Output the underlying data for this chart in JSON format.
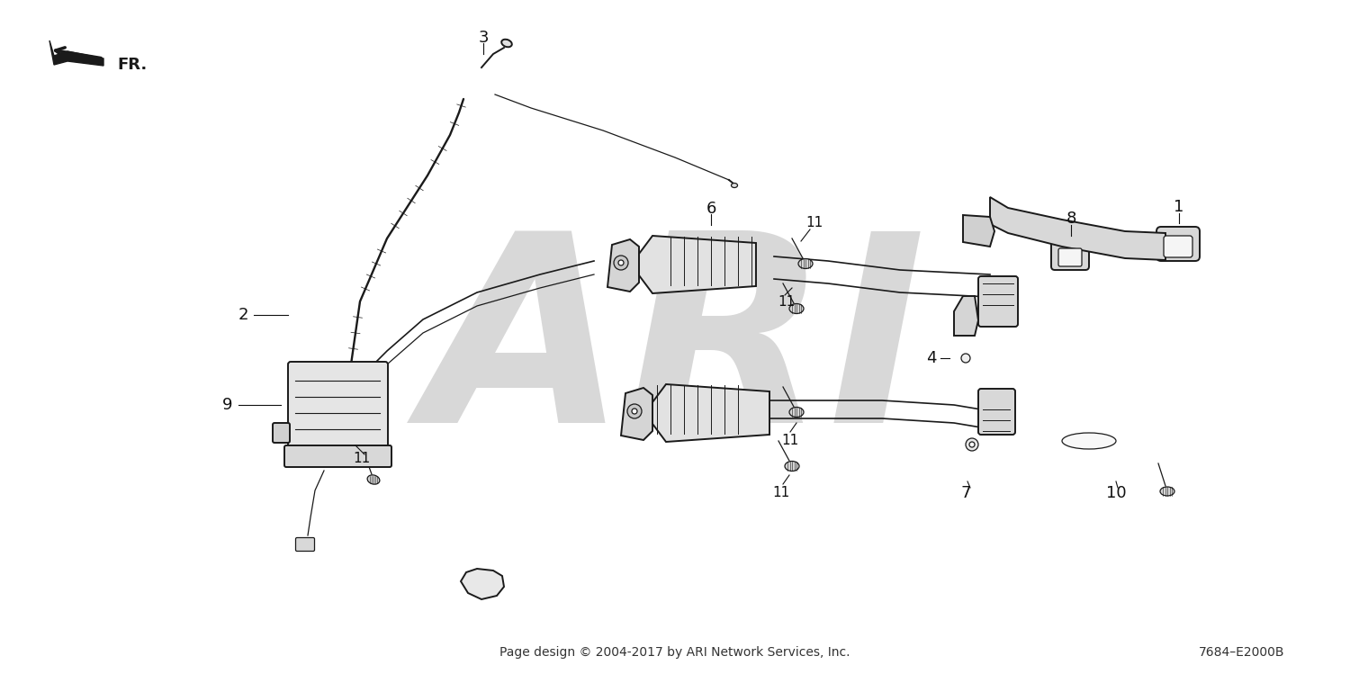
{
  "bg_color": "#ffffff",
  "footer_text": "Page design © 2004-2017 by ARI Network Services, Inc.",
  "part_number": "7684–E2000B",
  "watermark": "ARI",
  "text_color": "#1a1a1a",
  "line_color": "#1a1a1a",
  "watermark_color": "#d8d8d8",
  "lw_main": 1.4,
  "lw_thin": 0.9,
  "lw_wire": 1.2
}
